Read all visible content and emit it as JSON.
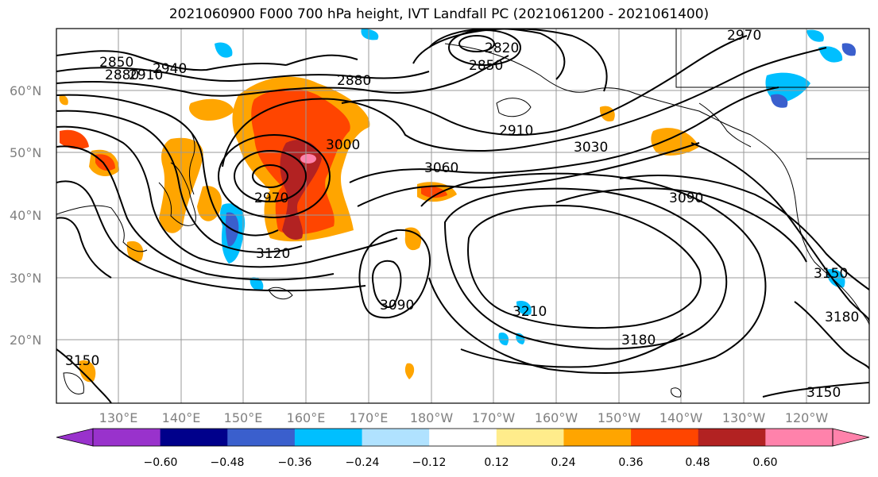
{
  "title": "2021060900 F000 700 hPa height, IVT Landfall PC (2021061200 - 2021061400)",
  "lat_labels": [
    "60°N",
    "50°N",
    "40°N",
    "30°N",
    "20°N"
  ],
  "lon_labels": [
    "130°E",
    "140°E",
    "150°E",
    "160°E",
    "170°E",
    "180°W",
    "170°W",
    "160°W",
    "150°W",
    "140°W",
    "130°W",
    "120°W"
  ],
  "contour_labels": [
    "2850",
    "2880",
    "2910",
    "2940",
    "2880",
    "2820",
    "2850",
    "2910",
    "3030",
    "3000",
    "3060",
    "2970",
    "3120",
    "3090",
    "3090",
    "3210",
    "3180",
    "2970",
    "3150",
    "3150",
    "3180",
    "3150"
  ],
  "colorbar": {
    "ticks": [
      "−0.60",
      "−0.48",
      "−0.36",
      "−0.24",
      "−0.12",
      "0.12",
      "0.24",
      "0.36",
      "0.48",
      "0.60"
    ],
    "colors": [
      "#9932cc",
      "#00008b",
      "#3a5fcd",
      "#00bfff",
      "#b0e2ff",
      "#ffffff",
      "#ffec8b",
      "#ffa500",
      "#ff4500",
      "#b22222",
      "#ff82ab"
    ]
  }
}
